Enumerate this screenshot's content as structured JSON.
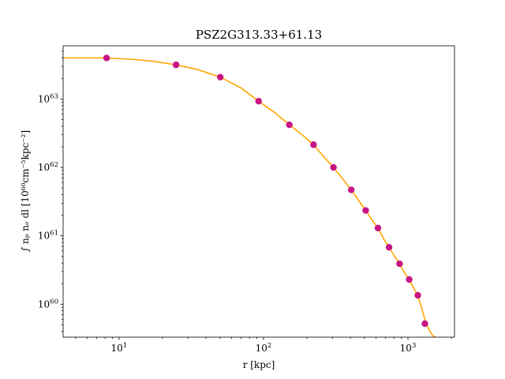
{
  "chart_data": {
    "type": "scatter",
    "title": "PSZ2G313.33+61.13",
    "xlabel": "r [kpc]",
    "ylabel": "∫ nₚ nₑ dl [10⁶⁰cm⁻⁵kpc⁻²]",
    "xscale": "log",
    "yscale": "log",
    "xlim": [
      4.1,
      2100
    ],
    "ylim": [
      3.3e+59,
      6e+63
    ],
    "xticks": [
      {
        "value": 10,
        "base": "10",
        "exp": "1"
      },
      {
        "value": 100,
        "base": "10",
        "exp": "2"
      },
      {
        "value": 1000,
        "base": "10",
        "exp": "3"
      }
    ],
    "yticks": [
      {
        "value": 1e+60,
        "base": "10",
        "exp": "60"
      },
      {
        "value": 1e+61,
        "base": "10",
        "exp": "61"
      },
      {
        "value": 1e+62,
        "base": "10",
        "exp": "62"
      },
      {
        "value": 1e+63,
        "base": "10",
        "exp": "63"
      }
    ],
    "grid": false,
    "series": [
      {
        "kind": "points",
        "color": "#c71585",
        "x": [
          8.2,
          24.8,
          50.2,
          92.5,
          151,
          222,
          305,
          405,
          510,
          620,
          740,
          875,
          1020,
          1170,
          1310
        ],
        "y": [
          3.98e+63,
          3.16e+63,
          2.09e+63,
          9.3e+62,
          4.2e+62,
          2.15e+62,
          1e+62,
          4.7e+61,
          2.35e+61,
          1.3e+61,
          6.8e+60,
          3.9e+60,
          2.3e+60,
          1.35e+60,
          5.2e+59
        ]
      },
      {
        "kind": "line",
        "color": "#ffa500",
        "x": [
          4.1,
          6,
          8.2,
          12,
          17,
          24.8,
          35,
          50.2,
          70,
          92.5,
          120,
          151,
          185,
          222,
          260,
          305,
          350,
          405,
          455,
          510,
          565,
          620,
          680,
          740,
          805,
          875,
          945,
          1020,
          1090,
          1170,
          1240,
          1310,
          1380,
          1450,
          1520,
          1560
        ],
        "y": [
          4e+63,
          4e+63,
          3.98e+63,
          3.82e+63,
          3.58e+63,
          3.16e+63,
          2.7e+63,
          2.09e+63,
          1.45e+63,
          9.3e+62,
          6.3e+62,
          4.2e+62,
          3e+62,
          2.15e+62,
          1.45e+62,
          1e+62,
          7e+61,
          4.7e+61,
          3.3e+61,
          2.35e+61,
          1.7e+61,
          1.3e+61,
          9e+60,
          6.8e+60,
          5.1e+60,
          3.9e+60,
          2.9e+60,
          2.3e+60,
          1.75e+60,
          1.35e+60,
          9e+59,
          6e+59,
          4.5e+59,
          3.7e+59,
          3.35e+59,
          3.3e+59
        ]
      }
    ]
  }
}
